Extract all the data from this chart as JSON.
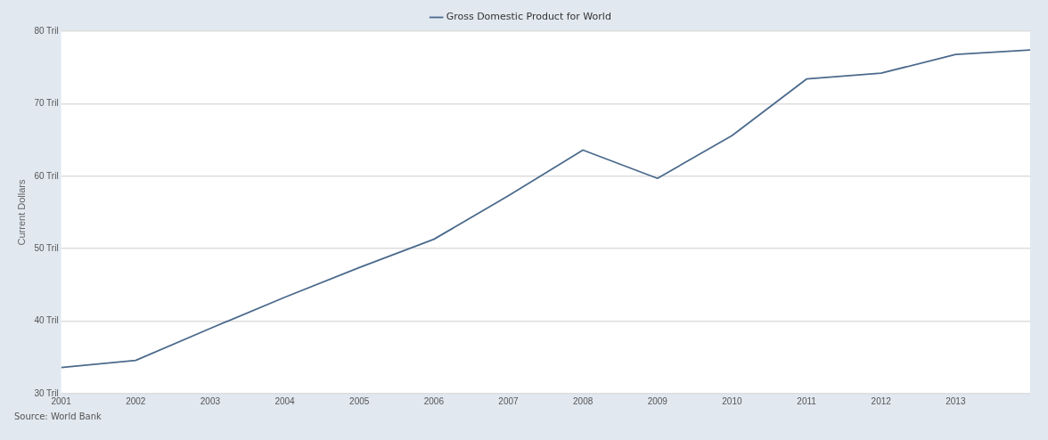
{
  "chart_data": {
    "type": "line",
    "x": [
      2001,
      2002,
      2003,
      2004,
      2005,
      2006,
      2007,
      2008,
      2009,
      2010,
      2011,
      2012,
      2013,
      2014
    ],
    "series": [
      {
        "name": "Gross Domestic Product for World",
        "color": "#4b6a8c",
        "values": [
          33.6,
          34.6,
          39.0,
          43.3,
          47.4,
          51.3,
          57.3,
          63.6,
          59.7,
          65.6,
          73.4,
          74.2,
          76.8,
          77.4
        ]
      }
    ],
    "ylabel": "Current Dollars",
    "xlim": [
      2001,
      2014
    ],
    "xticks": [
      2001,
      2002,
      2003,
      2004,
      2005,
      2006,
      2007,
      2008,
      2009,
      2010,
      2011,
      2012,
      2013
    ],
    "ylim": [
      30,
      80
    ],
    "yticks": [
      {
        "value": 30,
        "label": "30 Tril"
      },
      {
        "value": 40,
        "label": "40 Tril"
      },
      {
        "value": 50,
        "label": "50 Tril"
      },
      {
        "value": 60,
        "label": "60 Tril"
      },
      {
        "value": 70,
        "label": "70 Tril"
      },
      {
        "value": 80,
        "label": "80 Tril"
      }
    ],
    "grid": "y",
    "legend": "top",
    "marker": "none",
    "line_style": "solid",
    "annotations": [
      "Source: World Bank"
    ]
  }
}
